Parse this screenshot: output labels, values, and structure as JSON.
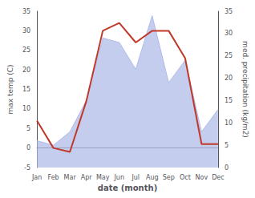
{
  "chart_data": {
    "type": "line",
    "categories": [
      "Jan",
      "Feb",
      "Mar",
      "Apr",
      "May",
      "Jun",
      "Jul",
      "Aug",
      "Sep",
      "Oct",
      "Nov",
      "Dec"
    ],
    "series": [
      {
        "type": "area",
        "axis": "y2",
        "color": "#b0bce8",
        "values": [
          6,
          5,
          8,
          15,
          29,
          28,
          22,
          34,
          19,
          24,
          8,
          13
        ]
      },
      {
        "type": "line",
        "color": "#c0392b",
        "values": [
          7,
          0,
          -1,
          12,
          30,
          32,
          27,
          30,
          30,
          23,
          1,
          1
        ]
      }
    ],
    "xlabel": "date (month)",
    "ylabel": "max temp (C)",
    "y2label": "med. precipitation (kg/m2)",
    "ylim": [
      -5,
      35
    ],
    "yticks": [
      -5,
      0,
      5,
      10,
      15,
      20,
      25,
      30,
      35
    ],
    "y2lim": [
      0,
      35
    ],
    "y2ticks": [
      0,
      5,
      10,
      15,
      20,
      25,
      30,
      35
    ],
    "grid": false
  }
}
